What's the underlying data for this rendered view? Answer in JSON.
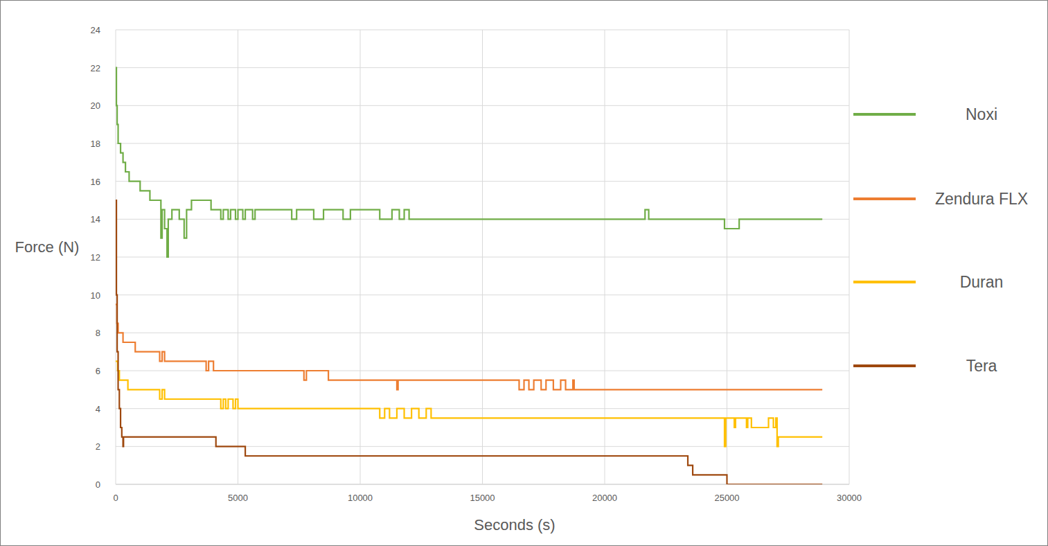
{
  "chart_data": {
    "type": "line",
    "x_label": "Seconds (s)",
    "y_label": "Force (N)",
    "xlim": [
      0,
      30000
    ],
    "xticks": [
      0,
      5000,
      10000,
      15000,
      20000,
      25000,
      30000
    ],
    "ylim": [
      0,
      24
    ],
    "yticks": [
      0,
      2,
      4,
      6,
      8,
      10,
      12,
      14,
      16,
      18,
      20,
      22,
      24
    ],
    "grid": true,
    "legend": "right",
    "line_style": "step",
    "series": [
      {
        "name": "Noxi",
        "color": "#70ad47",
        "x": [
          0,
          30,
          60,
          100,
          200,
          300,
          400,
          550,
          1000,
          1400,
          1850,
          1900,
          2000,
          2100,
          2150,
          2300,
          2600,
          2800,
          2900,
          3100,
          3900,
          4300,
          4400,
          4600,
          4700,
          4900,
          5000,
          5200,
          5300,
          5600,
          5700,
          7200,
          7400,
          8100,
          8500,
          9300,
          9600,
          10800,
          11300,
          11600,
          11800,
          12000,
          21650,
          21800,
          24900,
          25500,
          28900
        ],
        "values": [
          22,
          20,
          19,
          18,
          17.5,
          17,
          16.5,
          16,
          15.5,
          15,
          13,
          14.5,
          13.5,
          12,
          14,
          14.5,
          14,
          13,
          14.5,
          15,
          14.5,
          14,
          14.5,
          14,
          14.5,
          14,
          14.5,
          14,
          14.5,
          14,
          14.5,
          14,
          14.5,
          14,
          14.5,
          14,
          14.5,
          14,
          14.5,
          14,
          14.5,
          14,
          14.5,
          14,
          13.5,
          14,
          14
        ]
      },
      {
        "name": "Zendura FLX",
        "color": "#ed7d31",
        "x": [
          0,
          50,
          100,
          300,
          800,
          1800,
          1900,
          2000,
          3700,
          3800,
          4000,
          7700,
          7800,
          8700,
          11500,
          11550,
          16500,
          16700,
          16900,
          17100,
          17400,
          17600,
          17900,
          18200,
          18400,
          18700,
          18750,
          28900
        ],
        "values": [
          9.5,
          8.5,
          8,
          7.5,
          7,
          6.5,
          7,
          6.5,
          6,
          6.5,
          6,
          5.5,
          6,
          5.5,
          5,
          5.5,
          5,
          5.5,
          5,
          5.5,
          5,
          5.5,
          5,
          5.5,
          5,
          5.5,
          5,
          5
        ]
      },
      {
        "name": "Duran",
        "color": "#ffc000",
        "x": [
          0,
          80,
          150,
          500,
          1800,
          1900,
          2000,
          4300,
          4400,
          4500,
          4600,
          4800,
          4900,
          5000,
          10800,
          11000,
          11200,
          11500,
          11800,
          12100,
          12400,
          12700,
          12900,
          24900,
          24950,
          25300,
          25350,
          25800,
          25850,
          26000,
          26700,
          26900,
          27000,
          27050,
          27100,
          28900
        ],
        "values": [
          6.5,
          6,
          5.5,
          5,
          4.5,
          5,
          4.5,
          4,
          4.5,
          4,
          4.5,
          4,
          4.5,
          4,
          3.5,
          4,
          3.5,
          4,
          3.5,
          4,
          3.5,
          4,
          3.5,
          2,
          3.5,
          3,
          3.5,
          3,
          3.5,
          3,
          3.5,
          3,
          3.5,
          2,
          2.5,
          2.5
        ]
      },
      {
        "name": "Tera",
        "color": "#9e480e",
        "x": [
          0,
          30,
          60,
          100,
          150,
          200,
          250,
          300,
          320,
          4100,
          5300,
          23400,
          23600,
          25000,
          28900
        ],
        "values": [
          15,
          10,
          7,
          5,
          4,
          3,
          2.5,
          2,
          2.5,
          2,
          1.5,
          1,
          0.5,
          0,
          0
        ]
      }
    ]
  }
}
